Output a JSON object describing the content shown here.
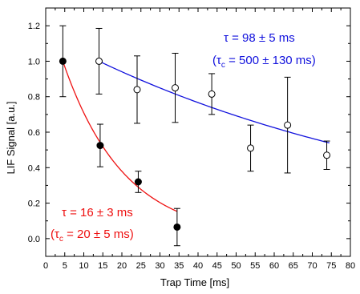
{
  "chart_data": {
    "type": "scatter",
    "xlabel": "Trap Time [ms]",
    "ylabel": "LIF Signal [a.u.]",
    "xlim": [
      0,
      80
    ],
    "ylim": [
      -0.1,
      1.3
    ],
    "x_ticks": [
      0,
      5,
      10,
      15,
      20,
      25,
      30,
      35,
      40,
      45,
      50,
      55,
      60,
      65,
      70,
      75,
      80
    ],
    "y_ticks": [
      0.0,
      0.2,
      0.4,
      0.6,
      0.8,
      1.0,
      1.2
    ],
    "grid": false,
    "series": [
      {
        "marker": "filled-circle",
        "color": "#000000",
        "points": [
          {
            "x": 4.5,
            "y": 1.0,
            "err": 0.2
          },
          {
            "x": 14.3,
            "y": 0.525,
            "err": 0.12
          },
          {
            "x": 24.3,
            "y": 0.32,
            "err": 0.06
          },
          {
            "x": 34.5,
            "y": 0.065,
            "err": 0.105
          }
        ],
        "fit": {
          "tau": 16,
          "amplitude": 1.0,
          "x0": 4.5,
          "x_end": 34.5,
          "color": "#ee1111"
        }
      },
      {
        "marker": "open-circle",
        "color": "#000000",
        "points": [
          {
            "x": 14,
            "y": 1.0,
            "err": 0.185
          },
          {
            "x": 24,
            "y": 0.84,
            "err": 0.19
          },
          {
            "x": 34,
            "y": 0.85,
            "err": 0.195
          },
          {
            "x": 43.6,
            "y": 0.815,
            "err": 0.115
          },
          {
            "x": 53.8,
            "y": 0.51,
            "err": 0.13
          },
          {
            "x": 63.5,
            "y": 0.64,
            "err": 0.27
          },
          {
            "x": 73.8,
            "y": 0.47,
            "err": 0.08
          }
        ],
        "fit": {
          "tau": 98,
          "amplitude": 1.0,
          "x0": 14,
          "x_end": 74.5,
          "color": "#1111dd"
        }
      }
    ],
    "annotations": {
      "blue_line1": "τ = 98 ± 5 ms",
      "blue_line2_open": "(τ",
      "blue_line2_sub": "c",
      "blue_line2_rest": " = 500 ± 130 ms)",
      "red_line1": "τ = 16 ± 3 ms",
      "red_line2_open": "(τ",
      "red_line2_sub": "c",
      "red_line2_rest": " = 20 ± 5 ms)",
      "blue_color": "#1111dd",
      "red_color": "#ee1111"
    }
  }
}
